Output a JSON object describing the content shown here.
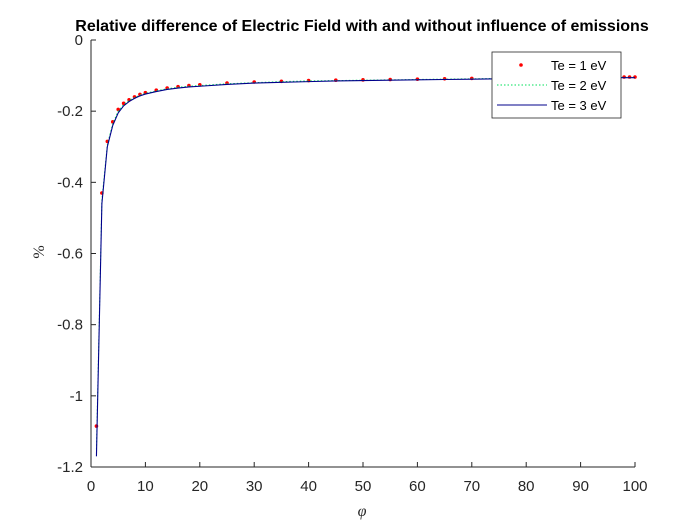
{
  "chart_data": {
    "type": "line",
    "title": "Relative difference of Electric Field with and without influence of emissions",
    "xlabel": "φ",
    "ylabel": "%",
    "xlim": [
      0,
      100
    ],
    "ylim": [
      -1.2,
      0
    ],
    "xticks": [
      0,
      10,
      20,
      30,
      40,
      50,
      60,
      70,
      80,
      90,
      100
    ],
    "yticks": [
      0,
      -0.2,
      -0.4,
      -0.6,
      -0.8,
      -1,
      -1.2
    ],
    "xtick_labels": [
      "0",
      "10",
      "20",
      "30",
      "40",
      "50",
      "60",
      "70",
      "80",
      "90",
      "100"
    ],
    "ytick_labels": [
      "0",
      "-0.2",
      "-0.4",
      "-0.6",
      "-0.8",
      "-1",
      "-1.2"
    ],
    "grid": false,
    "legend_position": "top-right",
    "x": [
      1,
      2,
      3,
      4,
      5,
      6,
      7,
      8,
      9,
      10,
      12,
      14,
      16,
      18,
      20,
      25,
      30,
      35,
      40,
      45,
      50,
      55,
      60,
      65,
      70,
      75,
      80,
      85,
      90,
      95,
      98,
      99,
      100
    ],
    "series": [
      {
        "name": "Te = 1 eV",
        "style": "dots",
        "color": "#ff0000",
        "values": [
          -1.085,
          -0.43,
          -0.285,
          -0.23,
          -0.195,
          -0.178,
          -0.168,
          -0.16,
          -0.153,
          -0.148,
          -0.141,
          -0.135,
          -0.131,
          -0.128,
          -0.126,
          -0.121,
          -0.118,
          -0.116,
          -0.114,
          -0.113,
          -0.112,
          -0.111,
          -0.11,
          -0.109,
          -0.108,
          -0.107,
          -0.106,
          -0.105,
          -0.105,
          -0.104,
          -0.104,
          -0.104,
          -0.104
        ]
      },
      {
        "name": "Te = 2 eV",
        "style": "dotted",
        "color": "#00e05a",
        "values": [
          -1.15,
          -0.45,
          -0.295,
          -0.235,
          -0.2,
          -0.182,
          -0.17,
          -0.162,
          -0.155,
          -0.15,
          -0.143,
          -0.137,
          -0.133,
          -0.13,
          -0.128,
          -0.123,
          -0.12,
          -0.117,
          -0.115,
          -0.114,
          -0.113,
          -0.112,
          -0.111,
          -0.11,
          -0.109,
          -0.108,
          -0.107,
          -0.106,
          -0.106,
          -0.105,
          -0.105,
          -0.105,
          -0.105
        ]
      },
      {
        "name": "Te = 3 eV",
        "style": "solid",
        "color": "#00008b",
        "values": [
          -1.17,
          -0.46,
          -0.3,
          -0.24,
          -0.205,
          -0.185,
          -0.173,
          -0.164,
          -0.157,
          -0.152,
          -0.145,
          -0.139,
          -0.135,
          -0.132,
          -0.13,
          -0.125,
          -0.121,
          -0.119,
          -0.117,
          -0.115,
          -0.114,
          -0.113,
          -0.112,
          -0.111,
          -0.11,
          -0.109,
          -0.108,
          -0.107,
          -0.107,
          -0.106,
          -0.106,
          -0.106,
          -0.106
        ]
      }
    ]
  }
}
